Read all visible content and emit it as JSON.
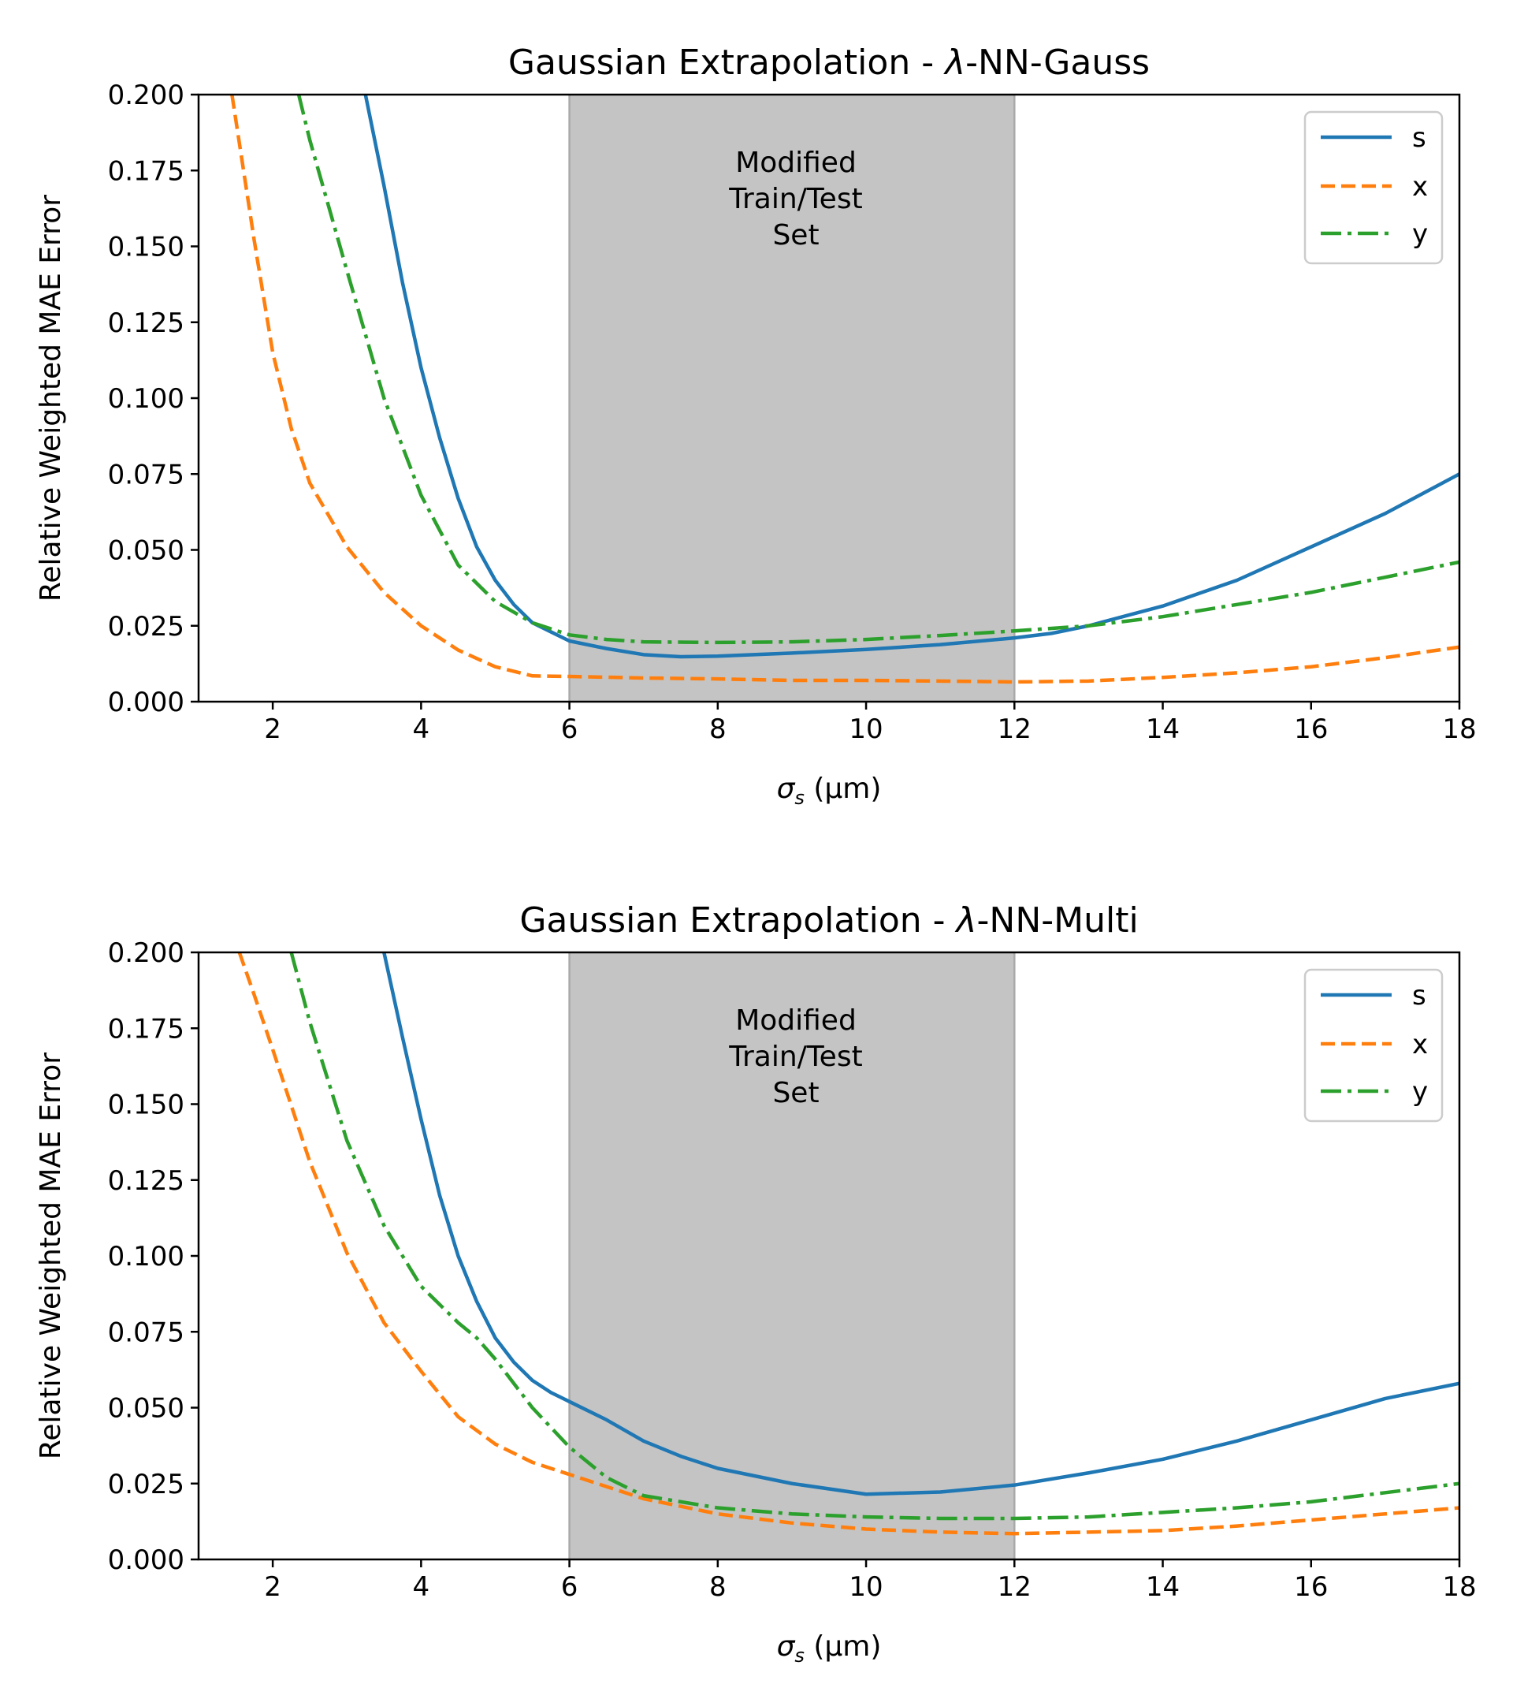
{
  "chart_data": [
    {
      "type": "line",
      "title": "Gaussian Extrapolation - λ-NN-Gauss",
      "title_prefix": "Gaussian Extrapolation - ",
      "title_symbol": "λ",
      "title_suffix": "-NN-Gauss",
      "xlabel": "σs (μm)",
      "xlabel_symbol": "σ",
      "xlabel_subscript": "s",
      "xlabel_unit": " (μm)",
      "ylabel": "Relative Weighted MAE Error",
      "xlim": [
        1,
        18
      ],
      "ylim": [
        0,
        0.2
      ],
      "xticks": [
        2,
        4,
        6,
        8,
        10,
        12,
        14,
        16,
        18
      ],
      "yticks": [
        0,
        0.025,
        0.05,
        0.075,
        0.1,
        0.125,
        0.15,
        0.175,
        0.2
      ],
      "shaded_region": {
        "x0": 6,
        "x1": 12,
        "color": "#c4c4c4",
        "edge_color": "#a9a9a9"
      },
      "annotation": {
        "lines": [
          "Modified",
          "Train/Test",
          "Set"
        ],
        "x": 9.1,
        "y": 0.18
      },
      "legend": {
        "position": "top-right",
        "entries": [
          "s",
          "x",
          "y"
        ]
      },
      "series": [
        {
          "name": "s",
          "color": "#1f77b4",
          "dash": "solid",
          "x": [
            3.25,
            3.5,
            3.75,
            4.0,
            4.25,
            4.5,
            4.75,
            5.0,
            5.25,
            5.5,
            5.75,
            6.0,
            6.5,
            7.0,
            7.5,
            8.0,
            9.0,
            10.0,
            11.0,
            12.0,
            12.5,
            13.0,
            14.0,
            15.0,
            16.0,
            17.0,
            18.0
          ],
          "y": [
            0.2,
            0.17,
            0.138,
            0.11,
            0.087,
            0.067,
            0.051,
            0.04,
            0.032,
            0.026,
            0.023,
            0.02,
            0.0175,
            0.0155,
            0.0148,
            0.015,
            0.016,
            0.0172,
            0.0188,
            0.021,
            0.0225,
            0.025,
            0.0315,
            0.04,
            0.051,
            0.062,
            0.075
          ]
        },
        {
          "name": "x",
          "color": "#ff7f0e",
          "dash": "dashed",
          "x": [
            1.45,
            1.75,
            2.0,
            2.25,
            2.5,
            3.0,
            3.5,
            4.0,
            4.5,
            5.0,
            5.5,
            6.0,
            7.0,
            8.0,
            9.0,
            10.0,
            11.0,
            12.0,
            13.0,
            14.0,
            15.0,
            16.0,
            17.0,
            18.0
          ],
          "y": [
            0.2,
            0.152,
            0.115,
            0.09,
            0.072,
            0.051,
            0.036,
            0.025,
            0.017,
            0.0115,
            0.0085,
            0.0083,
            0.0078,
            0.0075,
            0.007,
            0.007,
            0.0068,
            0.0065,
            0.0068,
            0.008,
            0.0095,
            0.0115,
            0.0145,
            0.018
          ]
        },
        {
          "name": "y",
          "color": "#2ca02c",
          "dash": "dashdot",
          "x": [
            2.35,
            2.5,
            3.0,
            3.5,
            4.0,
            4.5,
            5.0,
            5.5,
            6.0,
            6.5,
            7.0,
            8.0,
            9.0,
            10.0,
            11.0,
            12.0,
            13.0,
            14.0,
            15.0,
            16.0,
            17.0,
            18.0
          ],
          "y": [
            0.2,
            0.185,
            0.142,
            0.1,
            0.068,
            0.045,
            0.033,
            0.026,
            0.022,
            0.0205,
            0.0197,
            0.0195,
            0.0197,
            0.0205,
            0.0218,
            0.0233,
            0.025,
            0.028,
            0.032,
            0.036,
            0.041,
            0.046
          ]
        }
      ]
    },
    {
      "type": "line",
      "title": "Gaussian Extrapolation - λ-NN-Multi",
      "title_prefix": "Gaussian Extrapolation - ",
      "title_symbol": "λ",
      "title_suffix": "-NN-Multi",
      "xlabel": "σs (μm)",
      "xlabel_symbol": "σ",
      "xlabel_subscript": "s",
      "xlabel_unit": " (μm)",
      "ylabel": "Relative Weighted MAE Error",
      "xlim": [
        1,
        18
      ],
      "ylim": [
        0,
        0.2
      ],
      "xticks": [
        2,
        4,
        6,
        8,
        10,
        12,
        14,
        16,
        18
      ],
      "yticks": [
        0,
        0.025,
        0.05,
        0.075,
        0.1,
        0.125,
        0.15,
        0.175,
        0.2
      ],
      "shaded_region": {
        "x0": 6,
        "x1": 12,
        "color": "#c4c4c4",
        "edge_color": "#a9a9a9"
      },
      "annotation": {
        "lines": [
          "Modified",
          "Train/Test",
          "Set"
        ],
        "x": 9.1,
        "y": 0.18
      },
      "legend": {
        "position": "top-right",
        "entries": [
          "s",
          "x",
          "y"
        ]
      },
      "series": [
        {
          "name": "s",
          "color": "#1f77b4",
          "dash": "solid",
          "x": [
            3.5,
            3.75,
            4.0,
            4.25,
            4.5,
            4.75,
            5.0,
            5.25,
            5.5,
            5.75,
            6.0,
            6.5,
            7.0,
            7.5,
            8.0,
            9.0,
            10.0,
            11.0,
            12.0,
            13.0,
            14.0,
            14.5,
            15.0,
            16.0,
            17.0,
            18.0
          ],
          "y": [
            0.2,
            0.172,
            0.145,
            0.12,
            0.1,
            0.085,
            0.073,
            0.065,
            0.059,
            0.055,
            0.052,
            0.046,
            0.039,
            0.034,
            0.03,
            0.025,
            0.0215,
            0.0222,
            0.0245,
            0.0285,
            0.033,
            0.036,
            0.039,
            0.046,
            0.053,
            0.058
          ]
        },
        {
          "name": "x",
          "color": "#ff7f0e",
          "dash": "dashed",
          "x": [
            1.55,
            1.75,
            2.0,
            2.5,
            3.0,
            3.5,
            4.0,
            4.5,
            5.0,
            5.5,
            6.0,
            7.0,
            8.0,
            9.0,
            10.0,
            11.0,
            12.0,
            13.0,
            14.0,
            15.0,
            16.0,
            17.0,
            18.0
          ],
          "y": [
            0.2,
            0.186,
            0.168,
            0.131,
            0.101,
            0.078,
            0.062,
            0.047,
            0.038,
            0.032,
            0.028,
            0.02,
            0.015,
            0.012,
            0.01,
            0.009,
            0.0085,
            0.009,
            0.0095,
            0.011,
            0.013,
            0.015,
            0.017
          ]
        },
        {
          "name": "y",
          "color": "#2ca02c",
          "dash": "dashdot",
          "x": [
            2.25,
            2.5,
            3.0,
            3.5,
            4.0,
            4.5,
            4.75,
            5.0,
            5.5,
            6.0,
            6.5,
            7.0,
            8.0,
            9.0,
            10.0,
            11.0,
            12.0,
            13.0,
            14.0,
            15.0,
            16.0,
            17.0,
            18.0
          ],
          "y": [
            0.2,
            0.177,
            0.138,
            0.11,
            0.09,
            0.078,
            0.073,
            0.066,
            0.05,
            0.037,
            0.027,
            0.021,
            0.017,
            0.015,
            0.014,
            0.0135,
            0.0135,
            0.014,
            0.0155,
            0.017,
            0.019,
            0.022,
            0.025
          ]
        }
      ]
    }
  ]
}
